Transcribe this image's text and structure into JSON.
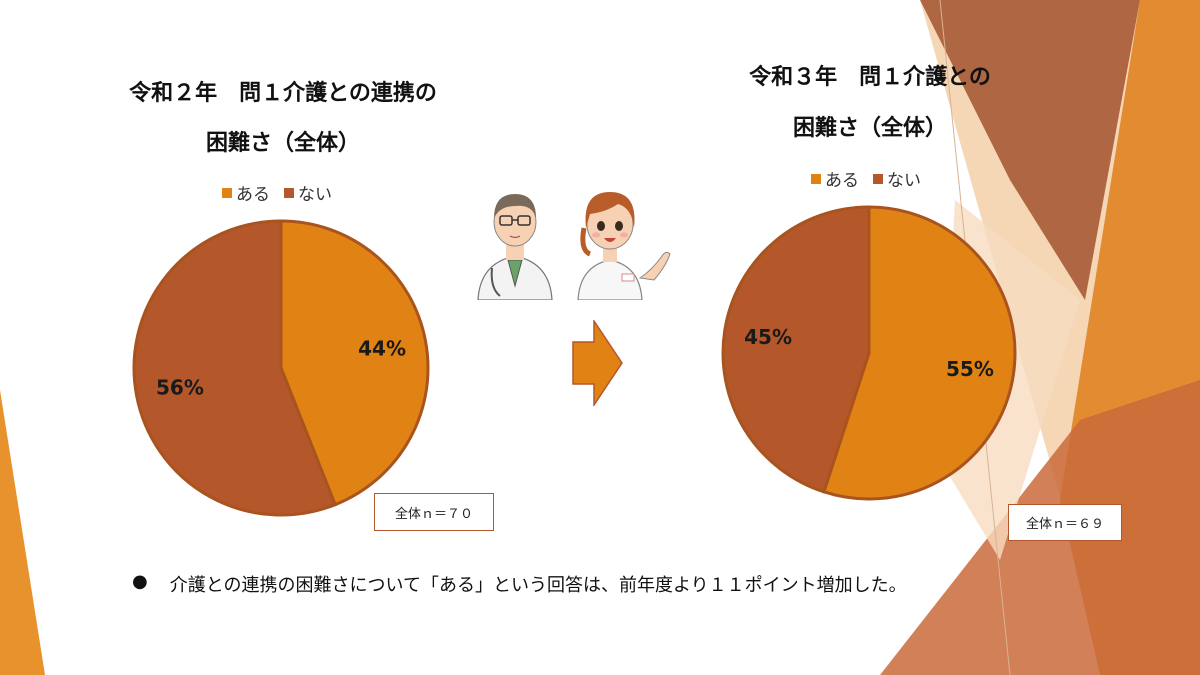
{
  "colors": {
    "aru": "#e08214",
    "nai": "#b4572a",
    "label": "#1a1a1a",
    "border": "#b4572a"
  },
  "slides": {
    "left_title": [
      "令和２年　問１介護との連携の",
      "困難さ（全体）"
    ],
    "right_title": [
      "令和３年　問１介護との",
      "困難さ（全体）"
    ],
    "left_n": "全体ｎ＝７０",
    "right_n": "全体ｎ＝６９",
    "bullet_glyph": "●",
    "bullet_text": "介護との連携の困難さについて「ある」という回答は、前年度より１１ポイント増加した。"
  },
  "icons": {
    "doctor": "doctor-illustration",
    "nurse": "nurse-illustration",
    "arrow": "right-arrow-icon"
  },
  "chart_data": [
    {
      "type": "pie",
      "title": "令和２年　問１介護との連携の困難さ（全体）",
      "legend": [
        "ある",
        "ない"
      ],
      "legend_position": "top",
      "slices": [
        {
          "label": "ある",
          "value": 44,
          "display": "44%"
        },
        {
          "label": "ない",
          "value": 56,
          "display": "56%"
        }
      ]
    },
    {
      "type": "pie",
      "title": "令和３年　問１介護との困難さ（全体）",
      "legend": [
        "ある",
        "ない"
      ],
      "legend_position": "top",
      "slices": [
        {
          "label": "ある",
          "value": 55,
          "display": "55%"
        },
        {
          "label": "ない",
          "value": 45,
          "display": "45%"
        }
      ]
    }
  ]
}
